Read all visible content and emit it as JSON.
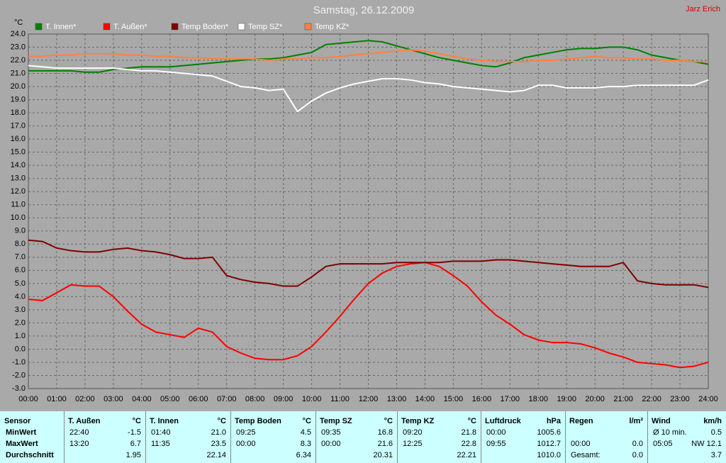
{
  "chart_data": {
    "type": "line",
    "title": "Samstag, 26.12.2009",
    "watermark": "Jarz Erich",
    "y_unit": "°C",
    "x": [
      0,
      0.5,
      1,
      1.5,
      2,
      2.5,
      3,
      3.5,
      4,
      4.5,
      5,
      5.5,
      6,
      6.5,
      7,
      7.5,
      8,
      8.5,
      9,
      9.5,
      10,
      10.5,
      11,
      11.5,
      12,
      12.5,
      13,
      13.5,
      14,
      14.5,
      15,
      15.5,
      16,
      16.5,
      17,
      17.5,
      18,
      18.5,
      19,
      19.5,
      20,
      20.5,
      21,
      21.5,
      22,
      22.5,
      23,
      23.5,
      24
    ],
    "xlim": [
      0,
      24
    ],
    "xticks": [
      {
        "value": 0,
        "label": "00:00"
      },
      {
        "value": 1,
        "label": "01:00"
      },
      {
        "value": 2,
        "label": "02:00"
      },
      {
        "value": 3,
        "label": "03:00"
      },
      {
        "value": 4,
        "label": "04:00"
      },
      {
        "value": 5,
        "label": "05:00"
      },
      {
        "value": 6,
        "label": "06:00"
      },
      {
        "value": 7,
        "label": "07:00"
      },
      {
        "value": 8,
        "label": "08:00"
      },
      {
        "value": 9,
        "label": "09:00"
      },
      {
        "value": 10,
        "label": "10:00"
      },
      {
        "value": 11,
        "label": "11:00"
      },
      {
        "value": 12,
        "label": "12:00"
      },
      {
        "value": 13,
        "label": "13:00"
      },
      {
        "value": 14,
        "label": "14:00"
      },
      {
        "value": 15,
        "label": "15:00"
      },
      {
        "value": 16,
        "label": "16:00"
      },
      {
        "value": 17,
        "label": "17:00"
      },
      {
        "value": 18,
        "label": "18:00"
      },
      {
        "value": 19,
        "label": "19:00"
      },
      {
        "value": 20,
        "label": "20:00"
      },
      {
        "value": 21,
        "label": "21:00"
      },
      {
        "value": 22,
        "label": "22:00"
      },
      {
        "value": 23,
        "label": "23:00"
      },
      {
        "value": 24,
        "label": "24:00"
      }
    ],
    "ylim": [
      -3,
      24
    ],
    "yticks": [
      {
        "value": -3,
        "label": "-3.0"
      },
      {
        "value": -2,
        "label": "-2.0"
      },
      {
        "value": -1,
        "label": "-1.0"
      },
      {
        "value": 0,
        "label": "0.0"
      },
      {
        "value": 1,
        "label": "1.0"
      },
      {
        "value": 2,
        "label": "2.0"
      },
      {
        "value": 3,
        "label": "3.0"
      },
      {
        "value": 4,
        "label": "4.0"
      },
      {
        "value": 5,
        "label": "5.0"
      },
      {
        "value": 6,
        "label": "6.0"
      },
      {
        "value": 7,
        "label": "7.0"
      },
      {
        "value": 8,
        "label": "8.0"
      },
      {
        "value": 9,
        "label": "9.0"
      },
      {
        "value": 10,
        "label": "10.0"
      },
      {
        "value": 11,
        "label": "11.0"
      },
      {
        "value": 12,
        "label": "12.0"
      },
      {
        "value": 13,
        "label": "13.0"
      },
      {
        "value": 14,
        "label": "14.0"
      },
      {
        "value": 15,
        "label": "15.0"
      },
      {
        "value": 16,
        "label": "16.0"
      },
      {
        "value": 17,
        "label": "17.0"
      },
      {
        "value": 18,
        "label": "18.0"
      },
      {
        "value": 19,
        "label": "19.0"
      },
      {
        "value": 20,
        "label": "20.0"
      },
      {
        "value": 21,
        "label": "21.0"
      },
      {
        "value": 22,
        "label": "22.0"
      },
      {
        "value": 23,
        "label": "23.0"
      },
      {
        "value": 24,
        "label": "24.0"
      }
    ],
    "grid": true,
    "series": [
      {
        "name": "T. Innen*",
        "color": "#008000",
        "values": [
          21.2,
          21.2,
          21.2,
          21.2,
          21.1,
          21.1,
          21.3,
          21.4,
          21.5,
          21.5,
          21.5,
          21.6,
          21.7,
          21.8,
          21.9,
          22.0,
          22.1,
          22.1,
          22.2,
          22.4,
          22.6,
          23.2,
          23.3,
          23.4,
          23.5,
          23.4,
          23.1,
          22.8,
          22.5,
          22.2,
          22.0,
          21.8,
          21.6,
          21.5,
          21.8,
          22.2,
          22.4,
          22.6,
          22.8,
          22.9,
          22.9,
          23.0,
          23.0,
          22.8,
          22.4,
          22.2,
          22.0,
          21.9,
          21.7
        ]
      },
      {
        "name": "T. Außen*",
        "color": "#ff0000",
        "values": [
          3.8,
          3.7,
          4.3,
          4.9,
          4.8,
          4.8,
          4.0,
          2.9,
          1.9,
          1.3,
          1.1,
          0.9,
          1.6,
          1.3,
          0.2,
          -0.3,
          -0.7,
          -0.8,
          -0.8,
          -0.5,
          0.2,
          1.3,
          2.5,
          3.8,
          5.0,
          5.8,
          6.3,
          6.5,
          6.6,
          6.3,
          5.6,
          4.8,
          3.6,
          2.6,
          1.9,
          1.1,
          0.7,
          0.5,
          0.5,
          0.4,
          0.1,
          -0.3,
          -0.6,
          -1.0,
          -1.1,
          -1.2,
          -1.4,
          -1.3,
          -1.0
        ]
      },
      {
        "name": "Temp Boden*",
        "color": "#800000",
        "values": [
          8.3,
          8.2,
          7.7,
          7.5,
          7.4,
          7.4,
          7.6,
          7.7,
          7.5,
          7.4,
          7.2,
          6.9,
          6.9,
          7.0,
          5.6,
          5.3,
          5.1,
          5.0,
          4.8,
          4.8,
          5.5,
          6.3,
          6.5,
          6.5,
          6.5,
          6.5,
          6.6,
          6.6,
          6.6,
          6.6,
          6.7,
          6.7,
          6.7,
          6.8,
          6.8,
          6.7,
          6.6,
          6.5,
          6.4,
          6.3,
          6.3,
          6.3,
          6.6,
          5.2,
          5.0,
          4.9,
          4.9,
          4.9,
          4.7
        ]
      },
      {
        "name": "Temp SZ*",
        "color": "#ffffff",
        "values": [
          21.6,
          21.5,
          21.4,
          21.4,
          21.4,
          21.4,
          21.4,
          21.3,
          21.2,
          21.2,
          21.1,
          21.0,
          20.9,
          20.8,
          20.4,
          20.0,
          19.9,
          19.7,
          19.8,
          18.1,
          18.9,
          19.5,
          19.9,
          20.2,
          20.4,
          20.6,
          20.6,
          20.5,
          20.3,
          20.2,
          20.0,
          19.9,
          19.8,
          19.7,
          19.6,
          19.7,
          20.1,
          20.1,
          19.9,
          19.9,
          19.9,
          20.0,
          20.0,
          20.1,
          20.1,
          20.1,
          20.1,
          20.1,
          20.5
        ]
      },
      {
        "name": "Temp KZ*",
        "color": "#ff8040",
        "values": [
          22.3,
          22.3,
          22.4,
          22.4,
          22.5,
          22.5,
          22.5,
          22.4,
          22.4,
          22.3,
          22.3,
          22.2,
          22.2,
          22.1,
          22.1,
          22.1,
          22.1,
          22.0,
          22.1,
          22.1,
          22.2,
          22.2,
          22.3,
          22.4,
          22.5,
          22.6,
          22.7,
          22.8,
          22.7,
          22.5,
          22.3,
          22.1,
          22.0,
          21.9,
          21.9,
          21.9,
          22.0,
          22.0,
          22.1,
          22.2,
          22.3,
          22.2,
          22.2,
          22.1,
          22.1,
          22.0,
          22.0,
          21.9,
          21.9
        ]
      }
    ]
  },
  "table": {
    "columns": [
      {
        "name": "Sensor"
      },
      {
        "name": "T. Außen",
        "unit": "°C"
      },
      {
        "name": "T. Innen",
        "unit": "°C"
      },
      {
        "name": "Temp Boden",
        "unit": "°C"
      },
      {
        "name": "Temp SZ",
        "unit": "°C"
      },
      {
        "name": "Temp KZ",
        "unit": "°C"
      },
      {
        "name": "Luftdruck",
        "unit": "hPa"
      },
      {
        "name": "Regen",
        "unit": "l/m²"
      },
      {
        "name": "Wind",
        "unit": "km/h"
      }
    ],
    "rows": [
      {
        "label": "MinWert",
        "cells": [
          {
            "key": "22:40",
            "value": "-1.5"
          },
          {
            "key": "01:40",
            "value": "21.0"
          },
          {
            "key": "09:25",
            "value": "4.5"
          },
          {
            "key": "09:35",
            "value": "16.8"
          },
          {
            "key": "09:20",
            "value": "21.8"
          },
          {
            "key": "00:00",
            "value": "1005.6"
          },
          null,
          {
            "key": "Ø 10 min.",
            "value": "0.5"
          }
        ]
      },
      {
        "label": "MaxWert",
        "cells": [
          {
            "key": "13:20",
            "value": "6.7"
          },
          {
            "key": "11:35",
            "value": "23.5"
          },
          {
            "key": "00:00",
            "value": "8.3"
          },
          {
            "key": "00:00",
            "value": "21.6"
          },
          {
            "key": "12:25",
            "value": "22.8"
          },
          {
            "key": "09:55",
            "value": "1012.7"
          },
          {
            "key": "00:00",
            "value": "0.0"
          },
          {
            "key": "05:05",
            "value": "NW 12.1"
          }
        ]
      },
      {
        "label": "Durchschnitt",
        "cells": [
          {
            "value": "1.95"
          },
          {
            "value": "22.14"
          },
          {
            "value": "6.34"
          },
          {
            "value": "20.31"
          },
          {
            "value": "22.21"
          },
          {
            "value": "1010.0"
          },
          {
            "key": "Gesamt:",
            "value": "0.0"
          },
          {
            "value": "3.7"
          }
        ]
      }
    ]
  }
}
